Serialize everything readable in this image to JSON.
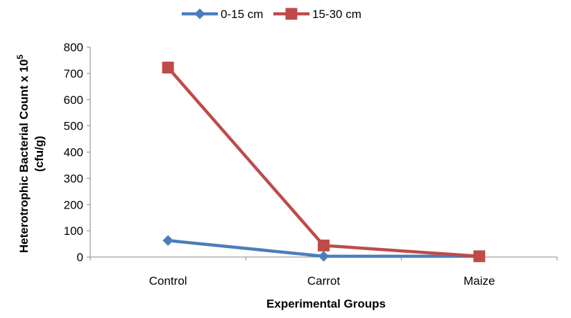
{
  "chart_data": {
    "type": "line",
    "categories": [
      "Control",
      "Carrot",
      "Maize"
    ],
    "series": [
      {
        "name": "0-15 cm",
        "values": [
          63,
          3,
          3
        ],
        "color": "#4a7ebb",
        "marker": "diamond"
      },
      {
        "name": "15-30 cm",
        "values": [
          722,
          44,
          3
        ],
        "color": "#be4b48",
        "marker": "square"
      }
    ],
    "title": "",
    "xlabel": "Experimental Groups",
    "ylabel": "Heterotrophic Bacterial Count x 10",
    "ylabel_superscript": "5",
    "ylabel_line2": "(cfu/g)",
    "ylim": [
      0,
      800
    ],
    "yticks": [
      "0",
      "100",
      "200",
      "300",
      "400",
      "500",
      "600",
      "700",
      "800"
    ],
    "grid": false,
    "legend_position": "top"
  }
}
